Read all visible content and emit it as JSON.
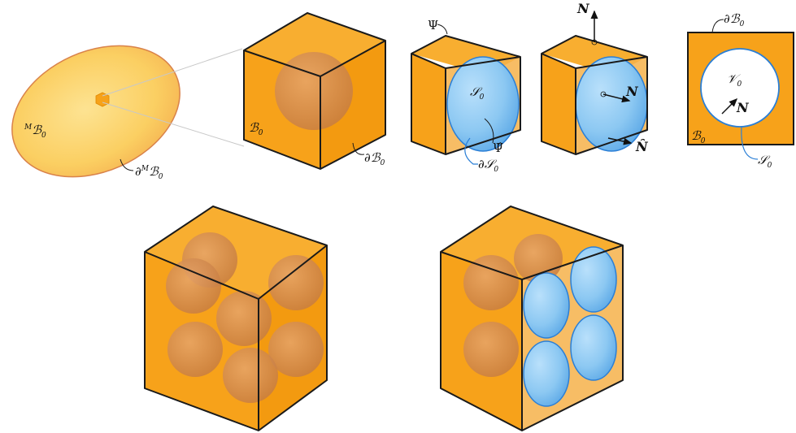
{
  "colors": {
    "matrix": "#f7a21a",
    "matrix_dark": "#e08800",
    "inclusion_fill": "#cf8a4a",
    "pore_blue": "#8cc8f2",
    "pore_edge": "#2b7fd6",
    "ellipsoid": "#fbd26b",
    "ellipsoid_edge": "#d9824a",
    "connector": "#c8c8c8"
  },
  "labels": {
    "macro_body": {
      "sup": "M",
      "main": "ℬ",
      "sub": "0"
    },
    "macro_boundary": {
      "prefix": "∂",
      "sup": "M",
      "main": "ℬ",
      "sub": "0"
    },
    "rve_body": {
      "main": "ℬ",
      "sub": "0"
    },
    "rve_boundary": {
      "prefix": "∂",
      "main": "ℬ",
      "sub": "0"
    },
    "psi": "Ψ",
    "psi_hat": "Ψ̂",
    "pore_surface": {
      "main": "𝒮",
      "sub": "0"
    },
    "pore_surface_boundary": {
      "prefix": "∂",
      "main": "𝒮",
      "sub": "0"
    },
    "normal": "N",
    "normal_hat": "N̂",
    "sq_boundary": {
      "prefix": "∂",
      "main": "ℬ",
      "sub": "0"
    },
    "sq_void": {
      "main": "𝒱",
      "sub": "0"
    },
    "sq_normal": "N",
    "sq_body": {
      "main": "ℬ",
      "sub": "0"
    },
    "sq_surface": {
      "main": "𝒮",
      "sub": "0"
    }
  }
}
